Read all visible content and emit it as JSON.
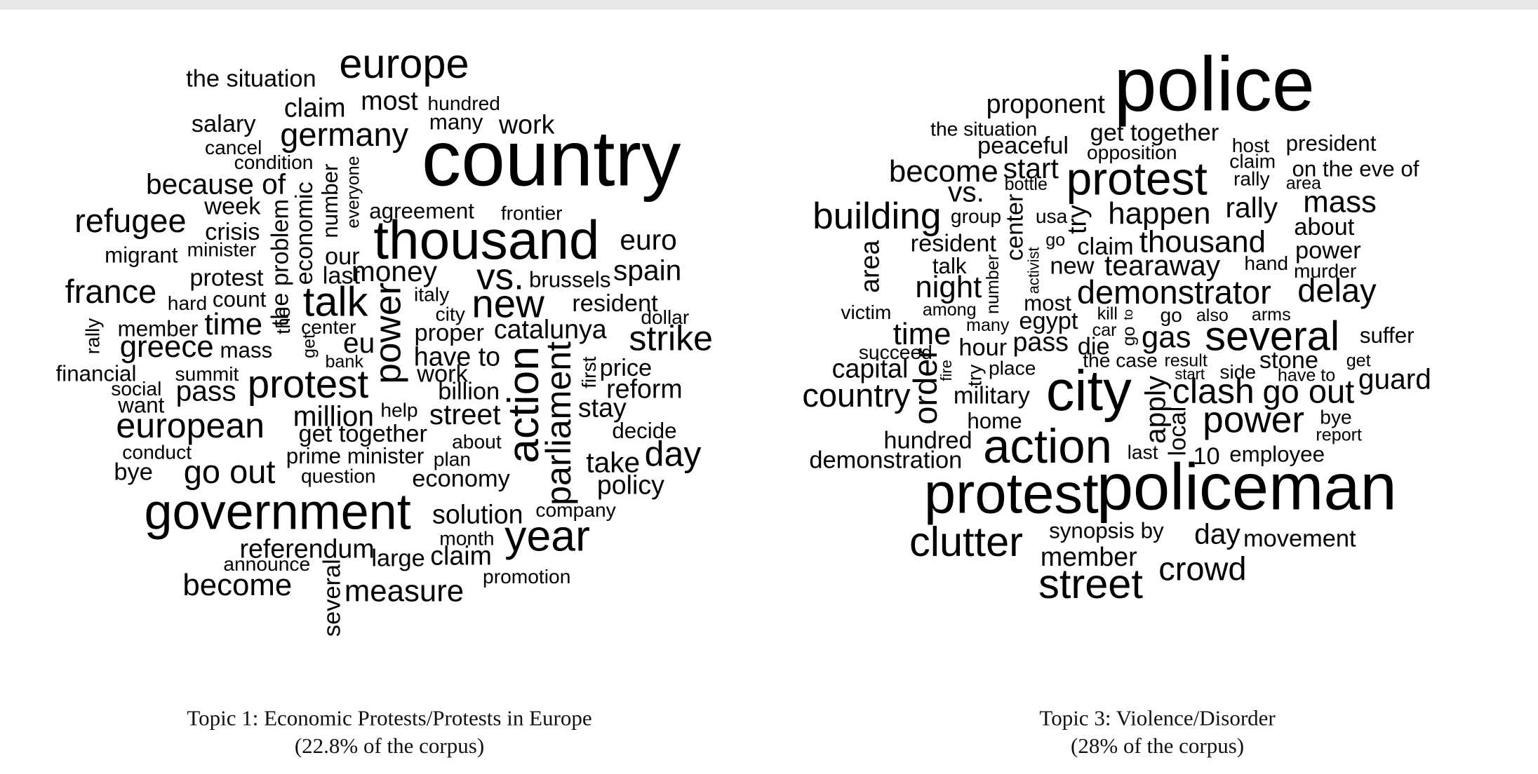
{
  "clouds": [
    {
      "words": [
        "the situation",
        "europe",
        "claim",
        "most",
        "hundred",
        "salary",
        "germany",
        "many",
        "work",
        "country",
        "cancel",
        "condition",
        "because of",
        "week",
        "refugee",
        "crisis",
        "minister",
        "migrant",
        "the problem",
        "economic",
        "number",
        "everyone",
        "agreement",
        "frontier",
        "thousand",
        "euro",
        "our",
        "last",
        "money",
        "vs.",
        "brussels",
        "spain",
        "protest",
        "france",
        "hard",
        "count",
        "italy",
        "talk",
        "new",
        "resident",
        "city",
        "dollar",
        "rally",
        "member",
        "time",
        "center",
        "the",
        "proper",
        "catalunya",
        "strike",
        "greece",
        "mass",
        "get",
        "eu",
        "bank",
        "power",
        "have to",
        "first",
        "price",
        "financial",
        "summit",
        "work",
        "action",
        "parliament",
        "social",
        "pass",
        "protest",
        "billion",
        "reform",
        "want",
        "help",
        "million",
        "street",
        "stay",
        "european",
        "get together",
        "about",
        "decide",
        "conduct",
        "prime minister",
        "plan",
        "take",
        "day",
        "bye",
        "go out",
        "question",
        "economy",
        "policy",
        "government",
        "solution",
        "company",
        "referendum",
        "month",
        "year",
        "announce",
        "large",
        "claim",
        "several",
        "become",
        "measure",
        "promotion"
      ],
      "caption": [
        "Topic 1: Economic Protests/Protests in Europe",
        "(22.8% of the corpus)"
      ]
    },
    {
      "words": [
        "proponent",
        "police",
        "the situation",
        "get together",
        "host",
        "president",
        "peaceful",
        "opposition",
        "claim",
        "become",
        "start",
        "protest",
        "rally",
        "on the eve of",
        "vs.",
        "bottle",
        "area",
        "mass",
        "building",
        "group",
        "center",
        "usa",
        "try",
        "happen",
        "rally",
        "about",
        "area",
        "resident",
        "go",
        "claim",
        "thousand",
        "power",
        "talk",
        "number",
        "activist",
        "new",
        "tearaway",
        "hand",
        "murder",
        "night",
        "demonstrator",
        "delay",
        "most",
        "victim",
        "among",
        "many",
        "egypt",
        "kill",
        "to",
        "go",
        "also",
        "arms",
        "car",
        "time",
        "pass",
        "die",
        "go",
        "gas",
        "several",
        "suffer",
        "succeed",
        "hour",
        "the case",
        "result",
        "stone",
        "get",
        "capital",
        "order",
        "fire",
        "try",
        "place",
        "start",
        "side",
        "have to",
        "guard",
        "country",
        "city",
        "military",
        "apply",
        "clash",
        "go out",
        "home",
        "local",
        "power",
        "bye",
        "report",
        "hundred",
        "action",
        "last",
        "10",
        "employee",
        "demonstration",
        "protest",
        "policeman",
        "synopsis by",
        "day",
        "movement",
        "clutter",
        "member",
        "crowd",
        "street"
      ],
      "caption": [
        "Topic 3: Violence/Disorder",
        "(28% of the corpus)"
      ]
    }
  ]
}
